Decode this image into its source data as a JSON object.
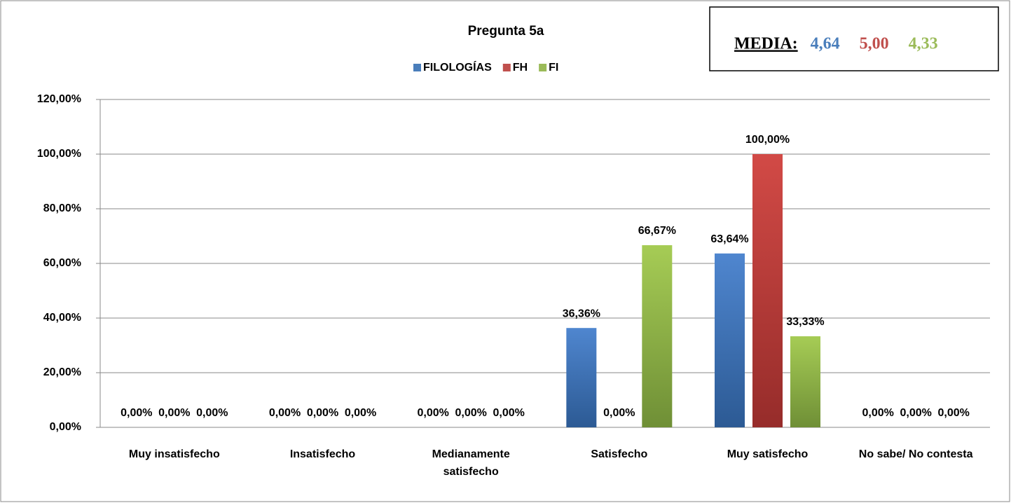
{
  "chart_data": {
    "type": "bar",
    "title": "Pregunta 5a",
    "categories": [
      "Muy insatisfecho",
      "Insatisfecho",
      "Medianamente satisfecho",
      "Satisfecho",
      "Muy satisfecho",
      "No sabe/ No contesta"
    ],
    "series": [
      {
        "name": "FILOLOGÍAS",
        "color": "#4a7ebb",
        "values": [
          0,
          0,
          0,
          36.36,
          63.64,
          0
        ],
        "value_labels": [
          "0,00%",
          "0,00%",
          "0,00%",
          "36,36%",
          "63,64%",
          "0,00%"
        ]
      },
      {
        "name": "FH",
        "color": "#c0504d",
        "values": [
          0,
          0,
          0,
          0,
          100,
          0
        ],
        "value_labels": [
          "0,00%",
          "0,00%",
          "0,00%",
          "0,00%",
          "100,00%",
          "0,00%"
        ]
      },
      {
        "name": "FI",
        "color": "#9bbb59",
        "values": [
          0,
          0,
          0,
          66.67,
          33.33,
          0
        ],
        "value_labels": [
          "0,00%",
          "0,00%",
          "0,00%",
          "66,67%",
          "33,33%",
          "0,00%"
        ]
      }
    ],
    "ylim": [
      0,
      120
    ],
    "yticks": [
      {
        "value": 0,
        "label": "0,00%"
      },
      {
        "value": 20,
        "label": "20,00%"
      },
      {
        "value": 40,
        "label": "40,00%"
      },
      {
        "value": 60,
        "label": "60,00%"
      },
      {
        "value": 80,
        "label": "80,00%"
      },
      {
        "value": 100,
        "label": "100,00%"
      },
      {
        "value": 120,
        "label": "120,00%"
      }
    ],
    "grid": true,
    "legend": "top",
    "media": {
      "label": "MEDIA:",
      "values": [
        "4,64",
        "5,00",
        "4,33"
      ]
    }
  }
}
